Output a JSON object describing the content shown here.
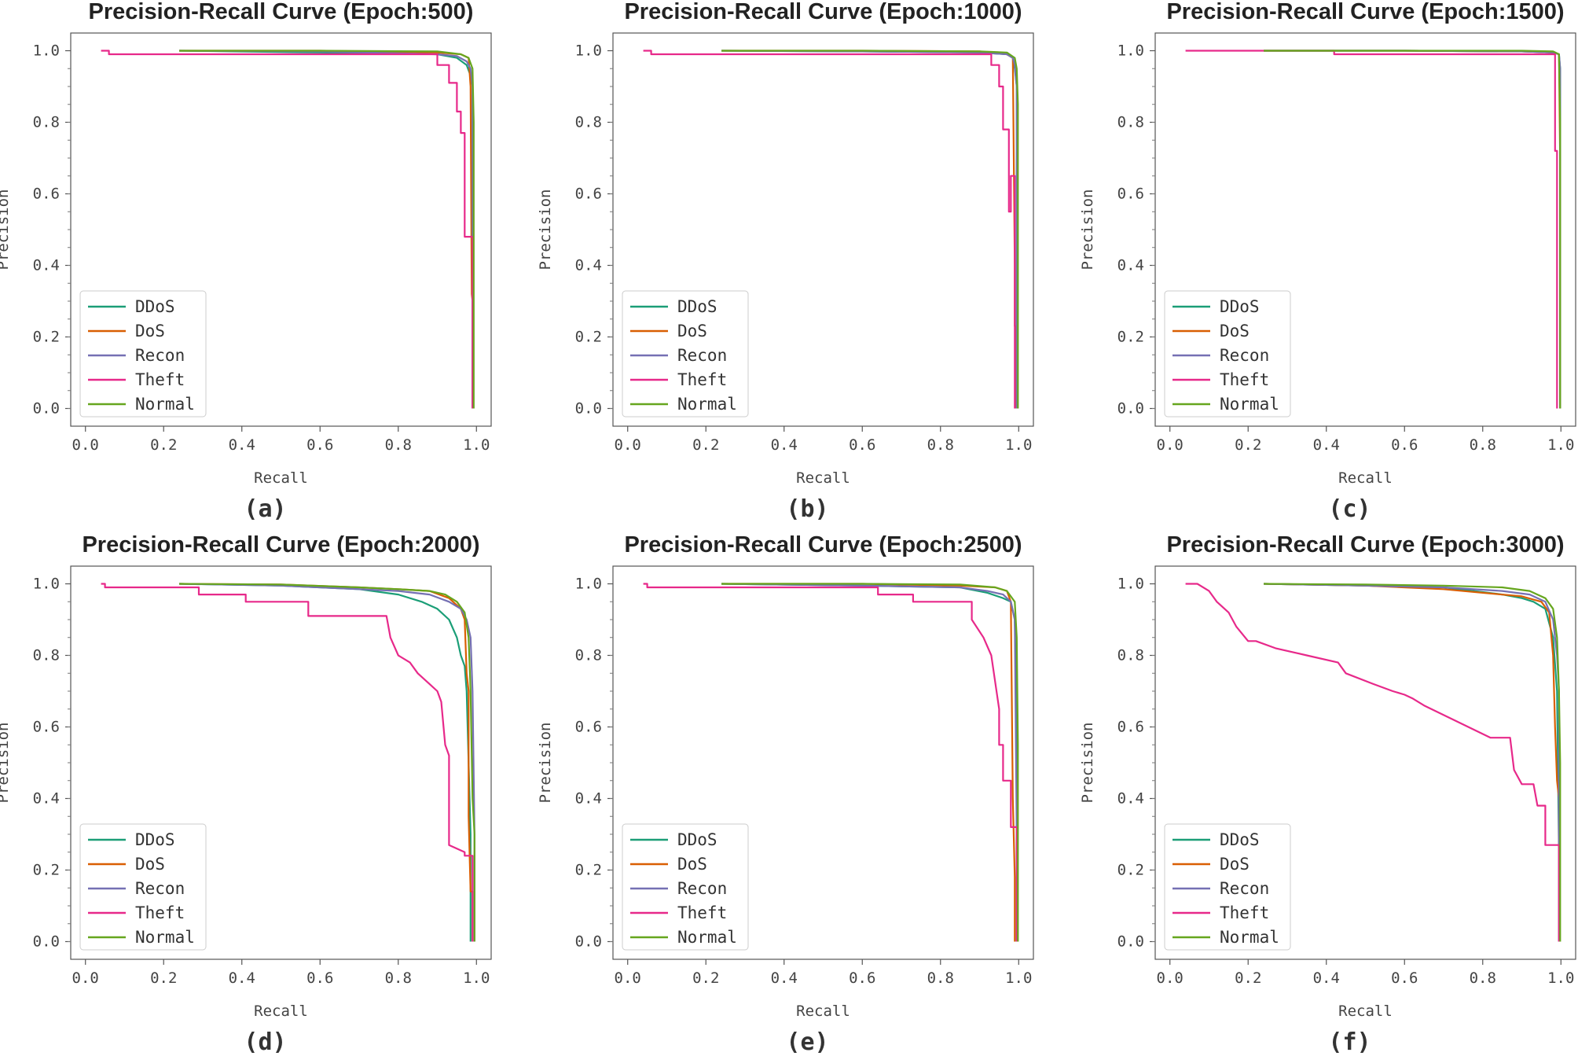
{
  "chart_data": [
    {
      "panel_label": "(a)",
      "type": "line",
      "title": "Precision-Recall Curve (Epoch:500)",
      "xlabel": "Recall",
      "ylabel": "Precision",
      "xlim": [
        0,
        1
      ],
      "ylim": [
        0,
        1
      ],
      "xticks": [
        "0.0",
        "0.2",
        "0.4",
        "0.6",
        "0.8",
        "1.0"
      ],
      "yticks": [
        "0.0",
        "0.2",
        "0.4",
        "0.6",
        "0.8",
        "1.0"
      ],
      "legend_position": "lower-left",
      "series": [
        {
          "name": "DDoS",
          "color": "#1b9e77",
          "x": [
            0.24,
            0.6,
            0.9,
            0.95,
            0.975,
            0.985,
            0.99,
            0.99
          ],
          "y": [
            1.0,
            0.995,
            0.99,
            0.98,
            0.96,
            0.93,
            0.9,
            0.0
          ]
        },
        {
          "name": "DoS",
          "color": "#d95f02",
          "x": [
            0.24,
            0.6,
            0.9,
            0.96,
            0.98,
            0.985,
            0.988,
            0.99,
            0.99
          ],
          "y": [
            1.0,
            1.0,
            0.995,
            0.99,
            0.98,
            0.9,
            0.32,
            0.3,
            0.0
          ]
        },
        {
          "name": "Recon",
          "color": "#7570b3",
          "x": [
            0.24,
            0.6,
            0.9,
            0.95,
            0.975,
            0.985,
            0.99,
            0.99
          ],
          "y": [
            1.0,
            0.998,
            0.99,
            0.985,
            0.97,
            0.95,
            0.9,
            0.0
          ]
        },
        {
          "name": "Theft",
          "color": "#e7298a",
          "x": [
            0.04,
            0.06,
            0.06,
            0.9,
            0.9,
            0.93,
            0.93,
            0.95,
            0.95,
            0.96,
            0.96,
            0.97,
            0.97,
            0.99,
            0.99
          ],
          "y": [
            1.0,
            1.0,
            0.99,
            0.99,
            0.96,
            0.96,
            0.91,
            0.91,
            0.83,
            0.83,
            0.77,
            0.77,
            0.48,
            0.48,
            0.0
          ]
        },
        {
          "name": "Normal",
          "color": "#66a61e",
          "x": [
            0.24,
            0.6,
            0.9,
            0.96,
            0.98,
            0.99,
            0.993,
            0.993
          ],
          "y": [
            1.0,
            1.0,
            0.998,
            0.99,
            0.98,
            0.95,
            0.8,
            0.0
          ]
        }
      ]
    },
    {
      "panel_label": "(b)",
      "type": "line",
      "title": "Precision-Recall Curve (Epoch:1000)",
      "xlabel": "Recall",
      "ylabel": "Precision",
      "xlim": [
        0,
        1
      ],
      "ylim": [
        0,
        1
      ],
      "xticks": [
        "0.0",
        "0.2",
        "0.4",
        "0.6",
        "0.8",
        "1.0"
      ],
      "yticks": [
        "0.0",
        "0.2",
        "0.4",
        "0.6",
        "0.8",
        "1.0"
      ],
      "legend_position": "lower-left",
      "series": [
        {
          "name": "DDoS",
          "color": "#1b9e77",
          "x": [
            0.24,
            0.6,
            0.9,
            0.97,
            0.985,
            0.99,
            0.995,
            0.995
          ],
          "y": [
            1.0,
            0.998,
            0.995,
            0.99,
            0.98,
            0.95,
            0.9,
            0.0
          ]
        },
        {
          "name": "DoS",
          "color": "#d95f02",
          "x": [
            0.24,
            0.6,
            0.9,
            0.97,
            0.985,
            0.99,
            0.99,
            0.993,
            0.993
          ],
          "y": [
            1.0,
            1.0,
            0.998,
            0.99,
            0.98,
            0.4,
            0.23,
            0.23,
            0.0
          ]
        },
        {
          "name": "Recon",
          "color": "#7570b3",
          "x": [
            0.24,
            0.6,
            0.9,
            0.97,
            0.985,
            0.99,
            0.995,
            0.995
          ],
          "y": [
            1.0,
            0.998,
            0.995,
            0.99,
            0.98,
            0.96,
            0.9,
            0.0
          ]
        },
        {
          "name": "Theft",
          "color": "#e7298a",
          "x": [
            0.04,
            0.06,
            0.06,
            0.93,
            0.93,
            0.95,
            0.95,
            0.96,
            0.96,
            0.975,
            0.975,
            0.98,
            0.98,
            0.99,
            0.99
          ],
          "y": [
            1.0,
            1.0,
            0.99,
            0.99,
            0.96,
            0.96,
            0.9,
            0.9,
            0.78,
            0.78,
            0.55,
            0.55,
            0.65,
            0.65,
            0.0
          ]
        },
        {
          "name": "Normal",
          "color": "#66a61e",
          "x": [
            0.24,
            0.6,
            0.9,
            0.97,
            0.99,
            0.995,
            0.998,
            0.998
          ],
          "y": [
            1.0,
            1.0,
            0.998,
            0.995,
            0.98,
            0.95,
            0.85,
            0.0
          ]
        }
      ]
    },
    {
      "panel_label": "(c)",
      "type": "line",
      "title": "Precision-Recall Curve (Epoch:1500)",
      "xlabel": "Recall",
      "ylabel": "Precision",
      "xlim": [
        0,
        1
      ],
      "ylim": [
        0,
        1
      ],
      "xticks": [
        "0.0",
        "0.2",
        "0.4",
        "0.6",
        "0.8",
        "1.0"
      ],
      "yticks": [
        "0.0",
        "0.2",
        "0.4",
        "0.6",
        "0.8",
        "1.0"
      ],
      "legend_position": "lower-left",
      "series": [
        {
          "name": "DDoS",
          "color": "#1b9e77",
          "x": [
            0.24,
            0.6,
            0.9,
            0.98,
            0.995,
            0.998,
            0.998
          ],
          "y": [
            1.0,
            1.0,
            0.998,
            0.995,
            0.99,
            0.95,
            0.0
          ]
        },
        {
          "name": "DoS",
          "color": "#d95f02",
          "x": [
            0.24,
            0.6,
            0.9,
            0.98,
            0.995,
            0.998,
            0.998
          ],
          "y": [
            1.0,
            1.0,
            0.998,
            0.995,
            0.99,
            0.68,
            0.0
          ]
        },
        {
          "name": "Recon",
          "color": "#7570b3",
          "x": [
            0.24,
            0.6,
            0.9,
            0.98,
            0.995,
            0.998,
            0.998
          ],
          "y": [
            1.0,
            1.0,
            0.998,
            0.995,
            0.99,
            0.95,
            0.0
          ]
        },
        {
          "name": "Theft",
          "color": "#e7298a",
          "x": [
            0.04,
            0.42,
            0.42,
            0.985,
            0.985,
            0.99,
            0.99
          ],
          "y": [
            1.0,
            1.0,
            0.99,
            0.99,
            0.72,
            0.72,
            0.0
          ]
        },
        {
          "name": "Normal",
          "color": "#66a61e",
          "x": [
            0.24,
            0.6,
            0.9,
            0.98,
            0.995,
            0.998,
            0.998
          ],
          "y": [
            1.0,
            1.0,
            1.0,
            0.998,
            0.99,
            0.8,
            0.0
          ]
        }
      ]
    },
    {
      "panel_label": "(d)",
      "type": "line",
      "title": "Precision-Recall Curve (Epoch:2000)",
      "xlabel": "Recall",
      "ylabel": "Precision",
      "xlim": [
        0,
        1
      ],
      "ylim": [
        0,
        1
      ],
      "xticks": [
        "0.0",
        "0.2",
        "0.4",
        "0.6",
        "0.8",
        "1.0"
      ],
      "yticks": [
        "0.0",
        "0.2",
        "0.4",
        "0.6",
        "0.8",
        "1.0"
      ],
      "legend_position": "lower-left",
      "series": [
        {
          "name": "DDoS",
          "color": "#1b9e77",
          "x": [
            0.24,
            0.5,
            0.7,
            0.8,
            0.86,
            0.9,
            0.93,
            0.95,
            0.96,
            0.97,
            0.975,
            0.98,
            0.985,
            0.985
          ],
          "y": [
            1.0,
            0.995,
            0.985,
            0.97,
            0.95,
            0.93,
            0.9,
            0.85,
            0.8,
            0.77,
            0.7,
            0.5,
            0.3,
            0.0
          ]
        },
        {
          "name": "DoS",
          "color": "#d95f02",
          "x": [
            0.24,
            0.5,
            0.7,
            0.8,
            0.88,
            0.93,
            0.96,
            0.97,
            0.975,
            0.98,
            0.98,
            0.985,
            0.99,
            0.99
          ],
          "y": [
            1.0,
            0.998,
            0.99,
            0.985,
            0.98,
            0.96,
            0.93,
            0.9,
            0.75,
            0.7,
            0.35,
            0.14,
            0.14,
            0.0
          ]
        },
        {
          "name": "Recon",
          "color": "#7570b3",
          "x": [
            0.24,
            0.5,
            0.7,
            0.8,
            0.88,
            0.93,
            0.96,
            0.975,
            0.985,
            0.99,
            0.995,
            0.995
          ],
          "y": [
            1.0,
            0.995,
            0.985,
            0.98,
            0.97,
            0.95,
            0.93,
            0.9,
            0.85,
            0.7,
            0.3,
            0.0
          ]
        },
        {
          "name": "Theft",
          "color": "#e7298a",
          "x": [
            0.04,
            0.05,
            0.05,
            0.29,
            0.29,
            0.41,
            0.41,
            0.57,
            0.57,
            0.77,
            0.78,
            0.8,
            0.83,
            0.85,
            0.88,
            0.9,
            0.91,
            0.92,
            0.93,
            0.93,
            0.97,
            0.97,
            0.99,
            0.99
          ],
          "y": [
            1.0,
            1.0,
            0.99,
            0.99,
            0.97,
            0.97,
            0.95,
            0.95,
            0.91,
            0.91,
            0.85,
            0.8,
            0.78,
            0.75,
            0.72,
            0.7,
            0.67,
            0.55,
            0.52,
            0.27,
            0.25,
            0.24,
            0.24,
            0.0
          ]
        },
        {
          "name": "Normal",
          "color": "#66a61e",
          "x": [
            0.24,
            0.5,
            0.7,
            0.8,
            0.88,
            0.92,
            0.95,
            0.97,
            0.98,
            0.985,
            0.99,
            0.995,
            0.995
          ],
          "y": [
            1.0,
            0.998,
            0.99,
            0.985,
            0.98,
            0.97,
            0.95,
            0.92,
            0.85,
            0.7,
            0.4,
            0.3,
            0.0
          ]
        }
      ]
    },
    {
      "panel_label": "(e)",
      "type": "line",
      "title": "Precision-Recall Curve (Epoch:2500)",
      "xlabel": "Recall",
      "ylabel": "Precision",
      "xlim": [
        0,
        1
      ],
      "ylim": [
        0,
        1
      ],
      "xticks": [
        "0.0",
        "0.2",
        "0.4",
        "0.6",
        "0.8",
        "1.0"
      ],
      "yticks": [
        "0.0",
        "0.2",
        "0.4",
        "0.6",
        "0.8",
        "1.0"
      ],
      "legend_position": "lower-left",
      "series": [
        {
          "name": "DDoS",
          "color": "#1b9e77",
          "x": [
            0.24,
            0.6,
            0.85,
            0.92,
            0.96,
            0.98,
            0.99,
            0.995,
            0.995
          ],
          "y": [
            1.0,
            0.995,
            0.99,
            0.975,
            0.96,
            0.95,
            0.9,
            0.6,
            0.0
          ]
        },
        {
          "name": "DoS",
          "color": "#d95f02",
          "x": [
            0.24,
            0.6,
            0.85,
            0.94,
            0.97,
            0.98,
            0.985,
            0.99,
            0.99
          ],
          "y": [
            1.0,
            1.0,
            0.995,
            0.99,
            0.98,
            0.95,
            0.4,
            0.18,
            0.0
          ]
        },
        {
          "name": "Recon",
          "color": "#7570b3",
          "x": [
            0.24,
            0.6,
            0.85,
            0.92,
            0.96,
            0.98,
            0.99,
            0.995,
            0.995
          ],
          "y": [
            1.0,
            0.995,
            0.99,
            0.98,
            0.97,
            0.95,
            0.9,
            0.3,
            0.0
          ]
        },
        {
          "name": "Theft",
          "color": "#e7298a",
          "x": [
            0.04,
            0.05,
            0.05,
            0.64,
            0.64,
            0.73,
            0.73,
            0.88,
            0.88,
            0.91,
            0.93,
            0.95,
            0.95,
            0.96,
            0.96,
            0.98,
            0.98,
            0.995,
            0.995
          ],
          "y": [
            1.0,
            1.0,
            0.99,
            0.99,
            0.97,
            0.97,
            0.95,
            0.95,
            0.9,
            0.85,
            0.8,
            0.65,
            0.55,
            0.55,
            0.45,
            0.45,
            0.32,
            0.32,
            0.0
          ]
        },
        {
          "name": "Normal",
          "color": "#66a61e",
          "x": [
            0.24,
            0.6,
            0.85,
            0.94,
            0.97,
            0.99,
            0.995,
            0.998,
            0.998
          ],
          "y": [
            1.0,
            1.0,
            0.998,
            0.99,
            0.98,
            0.95,
            0.85,
            0.55,
            0.0
          ]
        }
      ]
    },
    {
      "panel_label": "(f)",
      "type": "line",
      "title": "Precision-Recall Curve (Epoch:3000)",
      "xlabel": "Recall",
      "ylabel": "Precision",
      "xlim": [
        0,
        1
      ],
      "ylim": [
        0,
        1
      ],
      "xticks": [
        "0.0",
        "0.2",
        "0.4",
        "0.6",
        "0.8",
        "1.0"
      ],
      "yticks": [
        "0.0",
        "0.2",
        "0.4",
        "0.6",
        "0.8",
        "1.0"
      ],
      "legend_position": "lower-left",
      "series": [
        {
          "name": "DDoS",
          "color": "#1b9e77",
          "x": [
            0.24,
            0.5,
            0.7,
            0.85,
            0.9,
            0.93,
            0.96,
            0.98,
            0.99,
            0.995,
            0.995
          ],
          "y": [
            1.0,
            0.995,
            0.99,
            0.97,
            0.96,
            0.95,
            0.93,
            0.85,
            0.7,
            0.25,
            0.0
          ]
        },
        {
          "name": "DoS",
          "color": "#d95f02",
          "x": [
            0.24,
            0.5,
            0.7,
            0.8,
            0.9,
            0.95,
            0.97,
            0.98,
            0.985,
            0.99,
            0.995,
            0.995
          ],
          "y": [
            1.0,
            0.995,
            0.985,
            0.975,
            0.965,
            0.95,
            0.92,
            0.8,
            0.6,
            0.45,
            0.4,
            0.0
          ]
        },
        {
          "name": "Recon",
          "color": "#7570b3",
          "x": [
            0.24,
            0.5,
            0.7,
            0.85,
            0.92,
            0.96,
            0.98,
            0.99,
            0.995,
            0.995
          ],
          "y": [
            1.0,
            0.995,
            0.99,
            0.98,
            0.97,
            0.95,
            0.9,
            0.8,
            0.7,
            0.0
          ]
        },
        {
          "name": "Theft",
          "color": "#e7298a",
          "x": [
            0.04,
            0.07,
            0.1,
            0.12,
            0.15,
            0.17,
            0.2,
            0.22,
            0.27,
            0.35,
            0.43,
            0.45,
            0.52,
            0.57,
            0.6,
            0.62,
            0.65,
            0.82,
            0.87,
            0.88,
            0.9,
            0.93,
            0.94,
            0.96,
            0.96,
            0.995,
            0.995
          ],
          "y": [
            1.0,
            1.0,
            0.98,
            0.95,
            0.92,
            0.88,
            0.84,
            0.84,
            0.82,
            0.8,
            0.78,
            0.75,
            0.72,
            0.7,
            0.69,
            0.68,
            0.66,
            0.57,
            0.57,
            0.48,
            0.44,
            0.44,
            0.38,
            0.38,
            0.27,
            0.27,
            0.0
          ]
        },
        {
          "name": "Normal",
          "color": "#66a61e",
          "x": [
            0.24,
            0.5,
            0.7,
            0.85,
            0.92,
            0.96,
            0.98,
            0.99,
            0.995,
            0.998,
            0.998
          ],
          "y": [
            1.0,
            0.998,
            0.995,
            0.99,
            0.98,
            0.96,
            0.93,
            0.85,
            0.7,
            0.5,
            0.0
          ]
        }
      ]
    }
  ]
}
